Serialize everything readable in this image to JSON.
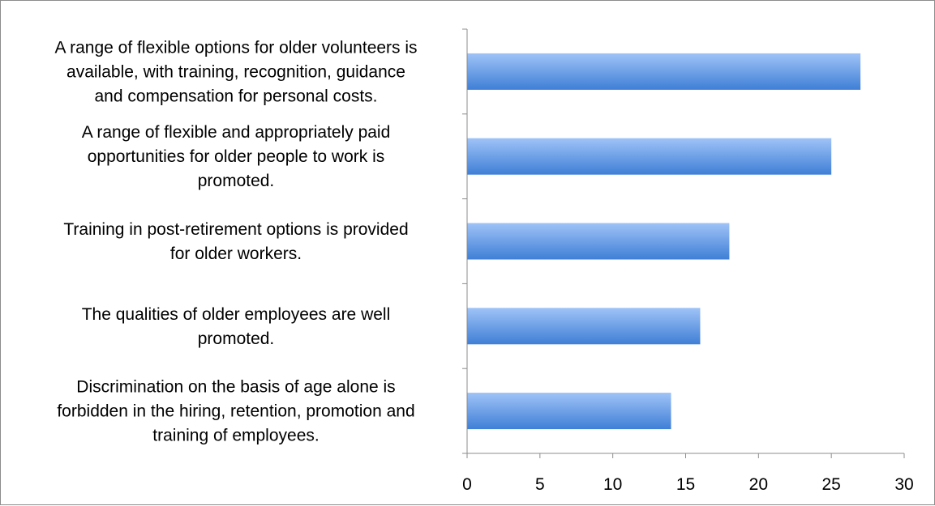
{
  "chart_data": {
    "type": "bar",
    "orientation": "horizontal",
    "categories": [
      "A range of flexible options for older volunteers is available, with training, recognition, guidance and compensation for personal costs.",
      "A range of flexible and appropriately paid opportunities for older people to work is promoted.",
      "Training in post-retirement options is provided for older workers.",
      "The qualities of older employees are well promoted.",
      "Discrimination on the basis of age alone is forbidden in the hiring, retention, promotion and training of employees."
    ],
    "category_label_lines": [
      [
        "A range of flexible options for older volunteers is",
        "available, with training, recognition, guidance",
        "and compensation for personal costs."
      ],
      [
        "A range of flexible and appropriately paid",
        "opportunities for older people to work is",
        "promoted."
      ],
      [
        "Training in post-retirement options is provided",
        "for older workers."
      ],
      [
        "The qualities of older employees are well",
        "promoted."
      ],
      [
        "Discrimination on the basis of age alone is",
        "forbidden in the hiring, retention, promotion and",
        "training of employees."
      ]
    ],
    "values": [
      27,
      25,
      18,
      16,
      14
    ],
    "xlim": [
      0,
      30
    ],
    "xticks": [
      0,
      5,
      10,
      15,
      20,
      25,
      30
    ],
    "title": "",
    "xlabel": "",
    "ylabel": "",
    "grid": false,
    "legend": "none",
    "colors": {
      "bar_top": "#9fc3f7",
      "bar_bottom": "#3f7fd6",
      "axis": "#8c8c8c"
    }
  }
}
